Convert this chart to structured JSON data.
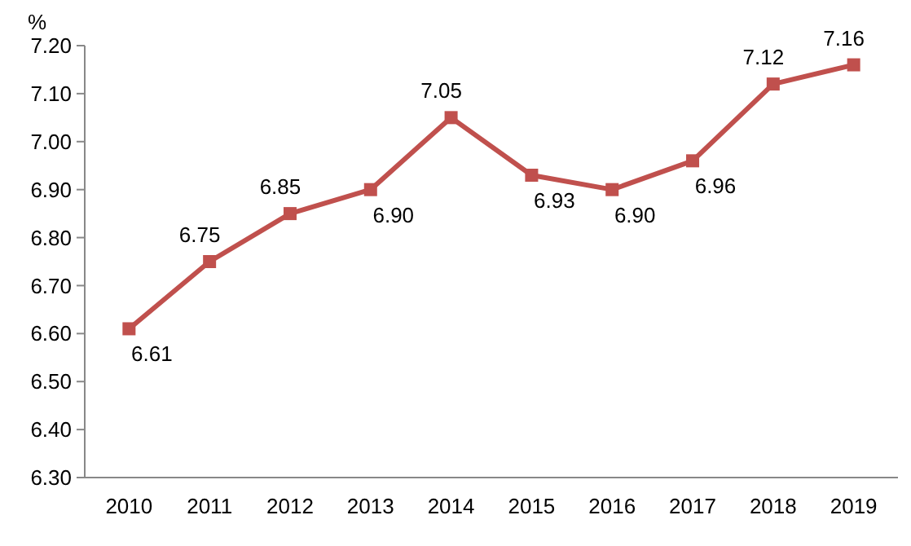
{
  "chart_data": {
    "type": "line",
    "ylabel": "%",
    "categories": [
      "2010",
      "2011",
      "2012",
      "2013",
      "2014",
      "2015",
      "2016",
      "2017",
      "2018",
      "2019"
    ],
    "series": [
      {
        "color": "#c0504d",
        "values": [
          6.61,
          6.75,
          6.85,
          6.9,
          7.05,
          6.93,
          6.9,
          6.96,
          7.12,
          7.16
        ],
        "value_labels": [
          "6.61",
          "6.75",
          "6.85",
          "6.90",
          "7.05",
          "6.93",
          "6.90",
          "6.96",
          "7.12",
          "7.16"
        ]
      }
    ],
    "ylim": [
      6.3,
      7.2
    ],
    "yticks": [
      {
        "value": 6.3,
        "label": "6.30"
      },
      {
        "value": 6.4,
        "label": "6.40"
      },
      {
        "value": 6.5,
        "label": "6.50"
      },
      {
        "value": 6.6,
        "label": "6.60"
      },
      {
        "value": 6.7,
        "label": "6.70"
      },
      {
        "value": 6.8,
        "label": "6.80"
      },
      {
        "value": 6.9,
        "label": "6.90"
      },
      {
        "value": 7.0,
        "label": "7.00"
      },
      {
        "value": 7.1,
        "label": "7.10"
      },
      {
        "value": 7.2,
        "label": "7.20"
      }
    ],
    "marker": "square",
    "line_style": "solid",
    "grid": false
  }
}
